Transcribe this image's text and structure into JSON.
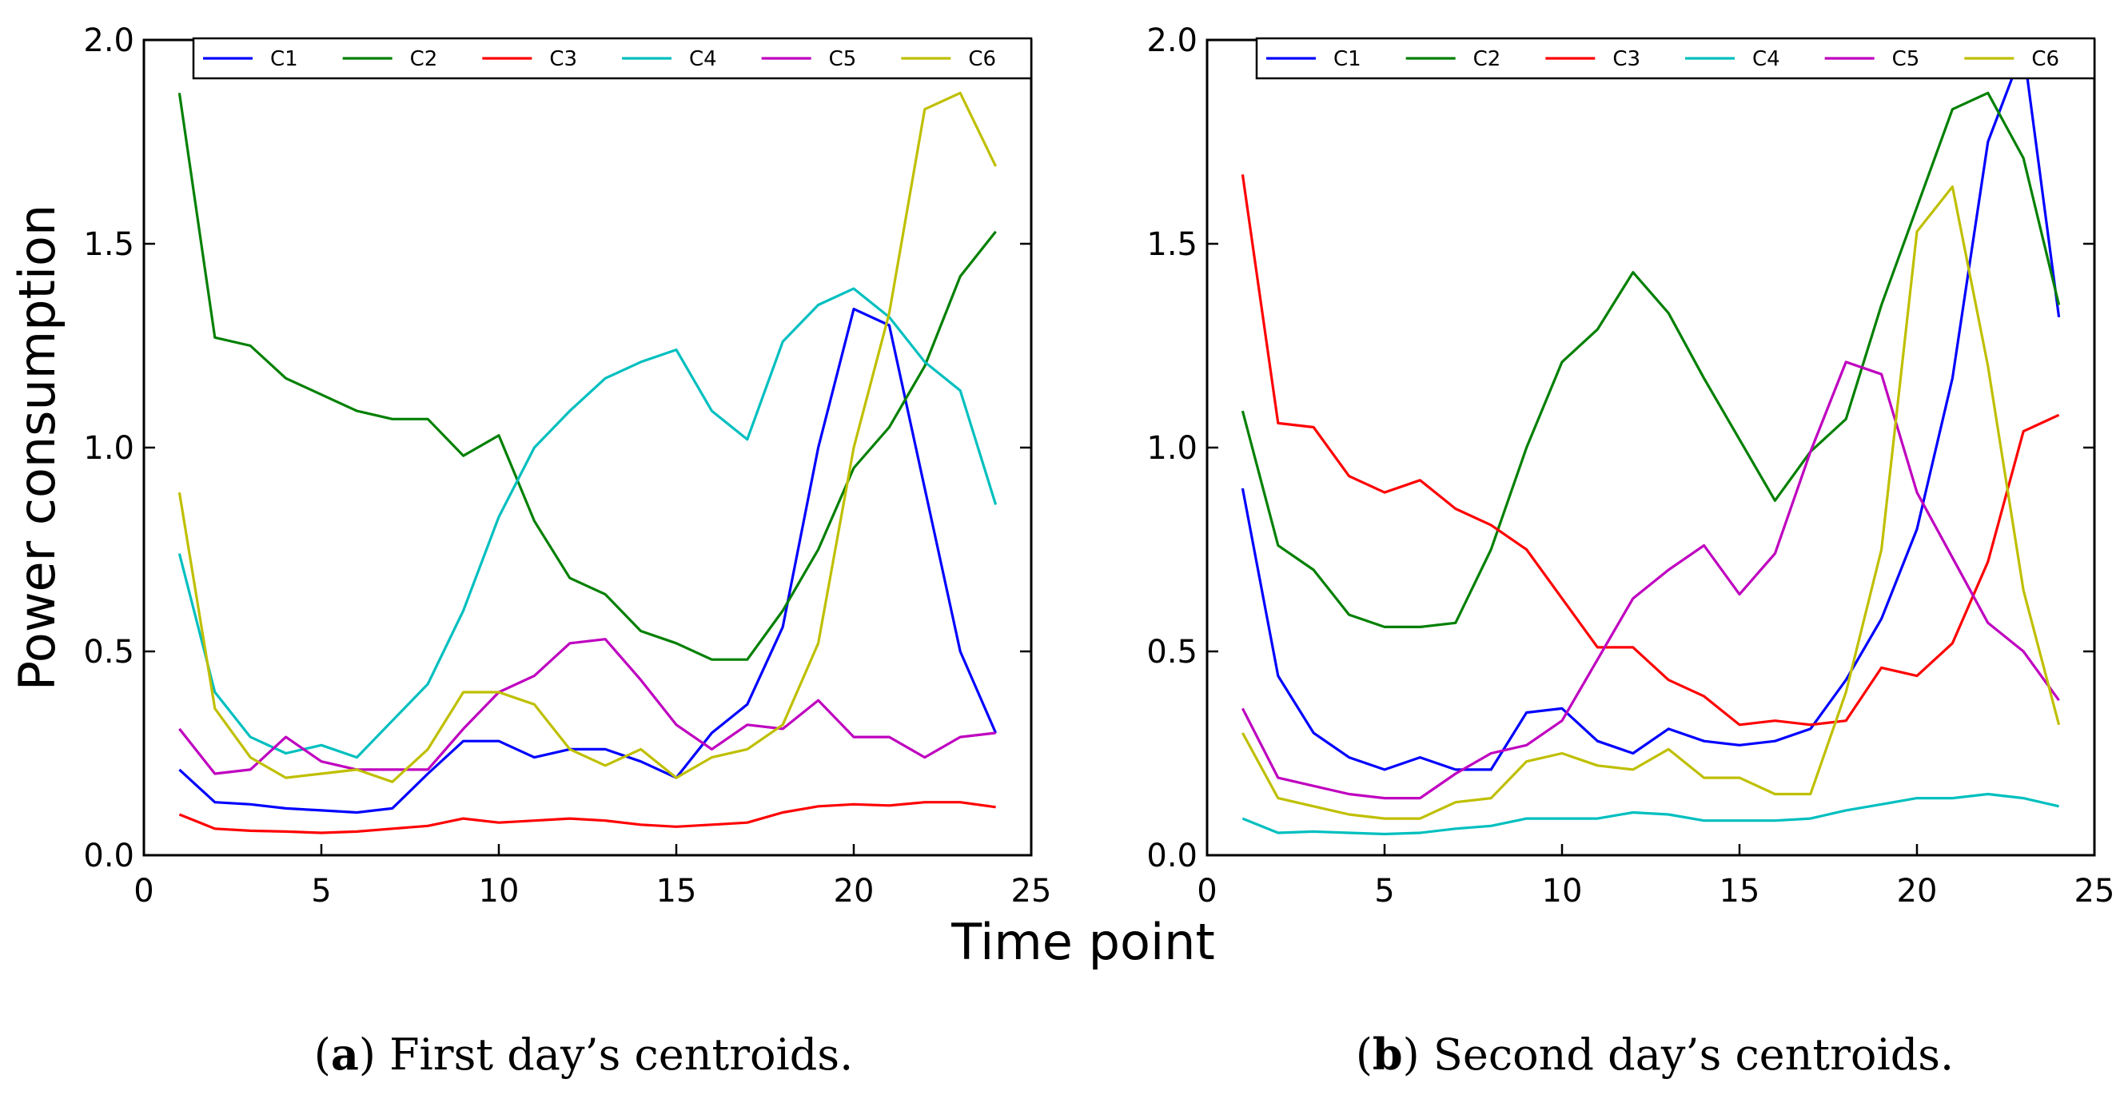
{
  "figure": {
    "ylabel": "Power consumption",
    "xlabel": "Time point",
    "captions": [
      {
        "letter": "a",
        "text": " First day’s centroids."
      },
      {
        "letter": "b",
        "text": " Second day’s centroids."
      }
    ]
  },
  "chart_data": [
    {
      "type": "line",
      "title": "",
      "xlabel": "Time point",
      "ylabel": "Power consumption",
      "xlim": [
        0,
        25
      ],
      "ylim": [
        0,
        2.0
      ],
      "xticks": [
        0,
        5,
        10,
        15,
        20,
        25
      ],
      "yticks": [
        "0.0",
        "0.5",
        "1.0",
        "1.5",
        "2.0"
      ],
      "grid": false,
      "legend_position": "top",
      "x": [
        1,
        2,
        3,
        4,
        5,
        6,
        7,
        8,
        9,
        10,
        11,
        12,
        13,
        14,
        15,
        16,
        17,
        18,
        19,
        20,
        21,
        22,
        23,
        24
      ],
      "series": [
        {
          "name": "C1",
          "color": "#0000ff",
          "values": [
            0.21,
            0.13,
            0.125,
            0.115,
            0.11,
            0.105,
            0.115,
            0.2,
            0.28,
            0.28,
            0.24,
            0.26,
            0.26,
            0.23,
            0.19,
            0.3,
            0.37,
            0.56,
            1.0,
            1.34,
            1.3,
            0.9,
            0.5,
            0.3
          ]
        },
        {
          "name": "C2",
          "color": "#008000",
          "values": [
            1.87,
            1.27,
            1.25,
            1.17,
            1.13,
            1.09,
            1.07,
            1.07,
            0.98,
            1.03,
            0.82,
            0.68,
            0.64,
            0.55,
            0.52,
            0.48,
            0.48,
            0.6,
            0.75,
            0.95,
            1.05,
            1.2,
            1.42,
            1.53
          ]
        },
        {
          "name": "C3",
          "color": "#ff0000",
          "values": [
            0.1,
            0.065,
            0.06,
            0.058,
            0.055,
            0.058,
            0.065,
            0.072,
            0.09,
            0.08,
            0.085,
            0.09,
            0.085,
            0.075,
            0.07,
            0.075,
            0.08,
            0.105,
            0.12,
            0.125,
            0.122,
            0.13,
            0.13,
            0.118
          ]
        },
        {
          "name": "C4",
          "color": "#00bfbf",
          "values": [
            0.74,
            0.4,
            0.29,
            0.25,
            0.27,
            0.24,
            0.33,
            0.42,
            0.6,
            0.83,
            1.0,
            1.09,
            1.17,
            1.21,
            1.24,
            1.09,
            1.02,
            1.26,
            1.35,
            1.39,
            1.32,
            1.21,
            1.14,
            0.86
          ]
        },
        {
          "name": "C5",
          "color": "#bf00bf",
          "values": [
            0.31,
            0.2,
            0.21,
            0.29,
            0.23,
            0.21,
            0.21,
            0.21,
            0.31,
            0.4,
            0.44,
            0.52,
            0.53,
            0.43,
            0.32,
            0.26,
            0.32,
            0.31,
            0.38,
            0.29,
            0.29,
            0.24,
            0.29,
            0.3
          ]
        },
        {
          "name": "C6",
          "color": "#bfbf00",
          "values": [
            0.89,
            0.36,
            0.24,
            0.19,
            0.2,
            0.21,
            0.18,
            0.26,
            0.4,
            0.4,
            0.37,
            0.26,
            0.22,
            0.26,
            0.19,
            0.24,
            0.26,
            0.32,
            0.52,
            1.0,
            1.33,
            1.83,
            1.87,
            1.69
          ]
        }
      ]
    },
    {
      "type": "line",
      "title": "",
      "xlabel": "Time point",
      "ylabel": "Power consumption",
      "xlim": [
        0,
        25
      ],
      "ylim": [
        0,
        2.0
      ],
      "xticks": [
        0,
        5,
        10,
        15,
        20,
        25
      ],
      "yticks": [
        "0.0",
        "0.5",
        "1.0",
        "1.5",
        "2.0"
      ],
      "grid": false,
      "legend_position": "top",
      "x": [
        1,
        2,
        3,
        4,
        5,
        6,
        7,
        8,
        9,
        10,
        11,
        12,
        13,
        14,
        15,
        16,
        17,
        18,
        19,
        20,
        21,
        22,
        23,
        24
      ],
      "series": [
        {
          "name": "C1",
          "color": "#0000ff",
          "values": [
            0.9,
            0.44,
            0.3,
            0.24,
            0.21,
            0.24,
            0.21,
            0.21,
            0.35,
            0.36,
            0.28,
            0.25,
            0.31,
            0.28,
            0.27,
            0.28,
            0.31,
            0.43,
            0.58,
            0.8,
            1.17,
            1.75,
            1.98,
            1.32
          ]
        },
        {
          "name": "C2",
          "color": "#008000",
          "values": [
            1.09,
            0.76,
            0.7,
            0.59,
            0.56,
            0.56,
            0.57,
            0.75,
            1.0,
            1.21,
            1.29,
            1.43,
            1.33,
            1.17,
            1.02,
            0.87,
            0.99,
            1.07,
            1.35,
            1.59,
            1.83,
            1.87,
            1.71,
            1.35
          ]
        },
        {
          "name": "C3",
          "color": "#ff0000",
          "values": [
            1.67,
            1.06,
            1.05,
            0.93,
            0.89,
            0.92,
            0.85,
            0.81,
            0.75,
            0.63,
            0.51,
            0.51,
            0.43,
            0.39,
            0.32,
            0.33,
            0.32,
            0.33,
            0.46,
            0.44,
            0.52,
            0.72,
            1.04,
            1.08
          ]
        },
        {
          "name": "C4",
          "color": "#00bfbf",
          "values": [
            0.09,
            0.055,
            0.058,
            0.055,
            0.052,
            0.055,
            0.065,
            0.072,
            0.09,
            0.09,
            0.09,
            0.105,
            0.1,
            0.085,
            0.085,
            0.085,
            0.09,
            0.11,
            0.125,
            0.14,
            0.14,
            0.15,
            0.14,
            0.12
          ]
        },
        {
          "name": "C5",
          "color": "#bf00bf",
          "values": [
            0.36,
            0.19,
            0.17,
            0.15,
            0.14,
            0.14,
            0.2,
            0.25,
            0.27,
            0.33,
            0.48,
            0.63,
            0.7,
            0.76,
            0.64,
            0.74,
            0.99,
            1.21,
            1.18,
            0.89,
            0.73,
            0.57,
            0.5,
            0.38
          ]
        },
        {
          "name": "C6",
          "color": "#bfbf00",
          "values": [
            0.3,
            0.14,
            0.12,
            0.1,
            0.09,
            0.09,
            0.13,
            0.14,
            0.23,
            0.25,
            0.22,
            0.21,
            0.26,
            0.19,
            0.19,
            0.15,
            0.15,
            0.4,
            0.75,
            1.53,
            1.64,
            1.2,
            0.65,
            0.32
          ]
        }
      ]
    }
  ]
}
